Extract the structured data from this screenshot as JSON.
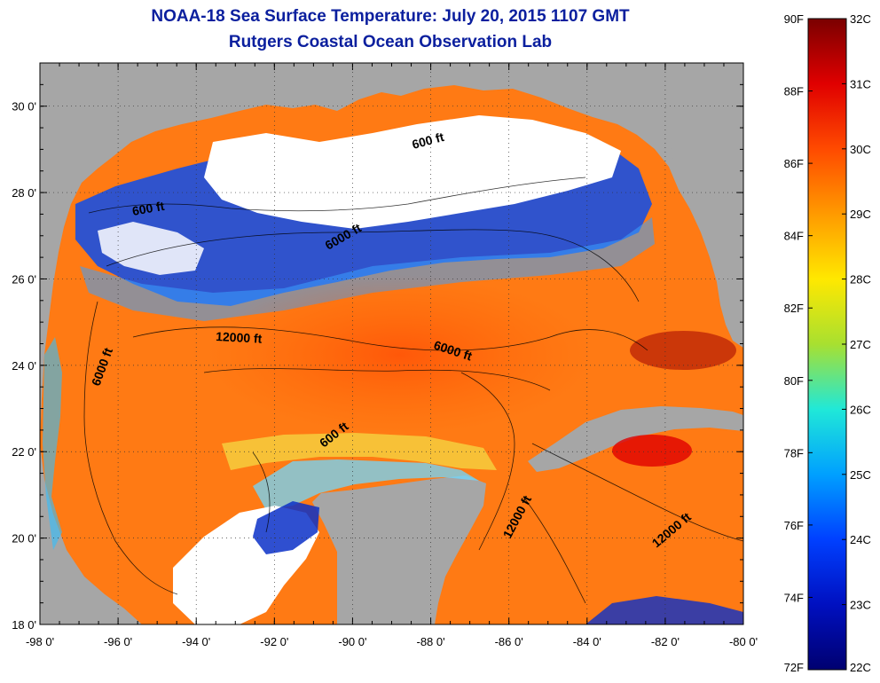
{
  "title": {
    "line1": "NOAA-18 Sea Surface Temperature:  July 20, 2015 1107 GMT",
    "line2": "Rutgers Coastal Ocean Observation Lab"
  },
  "x_ticks": [
    "-98 0'",
    "-96 0'",
    "-94 0'",
    "-92 0'",
    "-90 0'",
    "-88 0'",
    "-86 0'",
    "-84 0'",
    "-82 0'",
    "-80 0'"
  ],
  "y_ticks": [
    "30 0'",
    "28 0'",
    "26 0'",
    "24 0'",
    "22 0'",
    "20 0'",
    "18 0'"
  ],
  "contour_labels": [
    "600 ft",
    "600 ft",
    "6000 ft",
    "12000 ft",
    "6000 ft",
    "6000 ft",
    "600 ft",
    "12000 ft",
    "12000 ft"
  ],
  "colorbar": {
    "fahrenheit": [
      "90F",
      "88F",
      "86F",
      "84F",
      "82F",
      "80F",
      "78F",
      "76F",
      "74F",
      "72F"
    ],
    "celsius": [
      "32C",
      "31C",
      "30C",
      "29C",
      "28C",
      "27C",
      "26C",
      "25C",
      "24C",
      "23C",
      "22C"
    ]
  },
  "map": {
    "lon_range": [
      -98,
      -80
    ],
    "lat_range": [
      18,
      31
    ],
    "land_color": "#a6a6a6",
    "cloud_color": "#ffffff"
  }
}
